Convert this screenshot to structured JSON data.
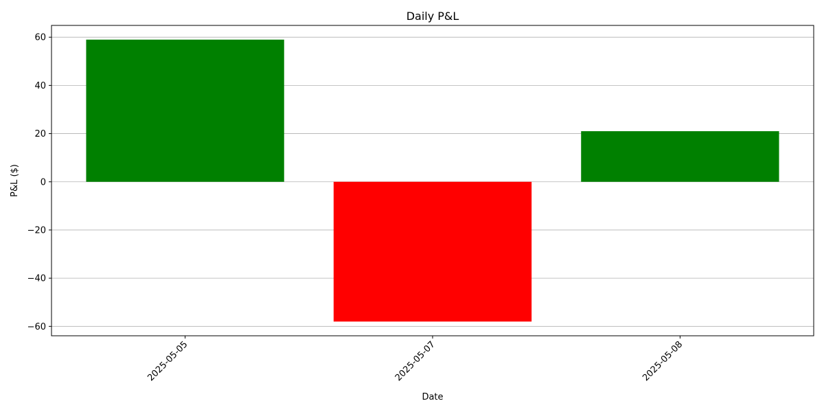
{
  "chart_data": {
    "type": "bar",
    "title": "Daily P&L",
    "xlabel": "Date",
    "ylabel": "P&L ($)",
    "categories": [
      "2025-05-05",
      "2025-05-07",
      "2025-05-08"
    ],
    "values": [
      59,
      -58,
      21
    ],
    "ylim": [
      -63.9,
      64.9
    ],
    "yticks": [
      60,
      40,
      20,
      0,
      -20,
      -40,
      -60
    ],
    "ytick_labels": [
      "60",
      "40",
      "20",
      "0",
      "−20",
      "−40",
      "−60"
    ],
    "grid": "horizontal",
    "legend": "none",
    "colors": {
      "positive": "#008000",
      "negative": "#ff0000",
      "grid": "#b0b0b0",
      "axis": "#000000"
    }
  }
}
